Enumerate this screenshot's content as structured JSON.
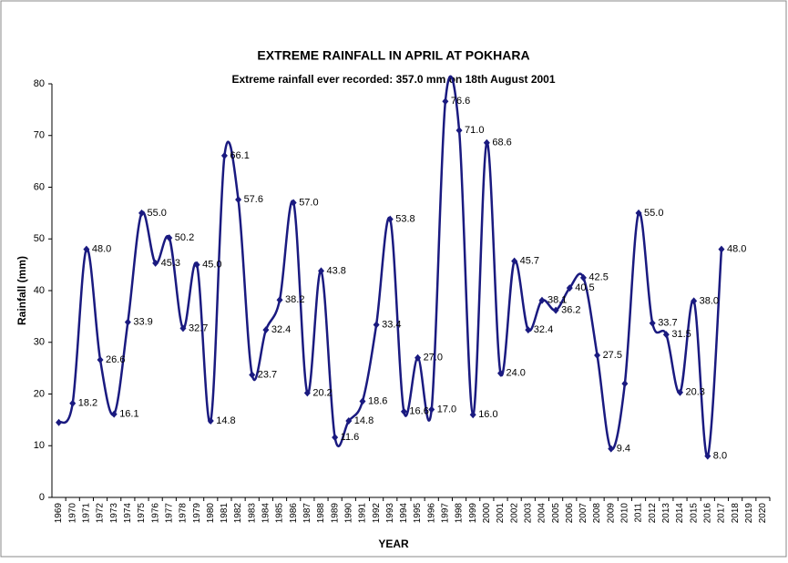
{
  "chart_data": {
    "type": "line",
    "title": "EXTREME RAINFALL IN APRIL AT POKHARA",
    "subtitle": "Extreme rainfall ever recorded: 357.0 mm on 18th August 2001",
    "x_label": "YEAR",
    "y_label": "Rainfall (mm)",
    "categories": [
      "1969",
      "1970",
      "1971",
      "1972",
      "1973",
      "1974",
      "1975",
      "1976",
      "1977",
      "1978",
      "1979",
      "1980",
      "1981",
      "1982",
      "1983",
      "1984",
      "1985",
      "1986",
      "1987",
      "1988",
      "1989",
      "1990",
      "1991",
      "1992",
      "1993",
      "1994",
      "1995",
      "1996",
      "1997",
      "1998",
      "1999",
      "2000",
      "2001",
      "2002",
      "2003",
      "2004",
      "2005",
      "2006",
      "2007",
      "2008",
      "2009",
      "2010",
      "2011",
      "2012",
      "2013",
      "2014",
      "2015",
      "2016",
      "2017",
      "2018",
      "2019",
      "2020"
    ],
    "series": [
      {
        "name": "Rainfall",
        "color": "#1a1a80",
        "values": [
          14.5,
          18.2,
          48.0,
          26.6,
          16.1,
          33.9,
          55.0,
          45.3,
          50.2,
          32.7,
          45.0,
          14.8,
          66.1,
          57.6,
          23.7,
          32.4,
          38.2,
          57.0,
          20.2,
          43.8,
          11.6,
          14.8,
          18.6,
          33.4,
          53.8,
          16.6,
          27.0,
          17.0,
          76.6,
          71.0,
          16.0,
          68.6,
          24.0,
          45.7,
          32.4,
          38.1,
          36.2,
          40.5,
          42.5,
          27.5,
          9.4,
          22.0,
          55.0,
          33.7,
          31.5,
          20.3,
          38.0,
          8.0,
          48.0,
          null,
          null,
          null
        ],
        "value_labels": [
          null,
          "18.2",
          "48.0",
          "26.6",
          "16.1",
          "33.9",
          "55.0",
          "45.3",
          "50.2",
          "32.7",
          "45.0",
          "14.8",
          "66.1",
          "57.6",
          "23.7",
          "32.4",
          "38.2",
          "57.0",
          "20.2",
          "43.8",
          "11.6",
          "14.8",
          "18.6",
          "33.4",
          "53.8",
          "16.6",
          "27.0",
          "17.0",
          "76.6",
          "71.0",
          "16.0",
          "68.6",
          "24.0",
          "45.7",
          "32.4",
          "38.1",
          "36.2",
          "40.5",
          "42.5",
          "27.5",
          "9.4",
          null,
          "55.0",
          "33.7",
          "31.5",
          "20.3",
          "38.0",
          "8.0",
          "48.0",
          null,
          null,
          null
        ]
      }
    ],
    "ylim": [
      0,
      80
    ],
    "yticks": [
      0,
      10,
      20,
      30,
      40,
      50,
      60,
      70,
      80
    ],
    "grid": false
  }
}
